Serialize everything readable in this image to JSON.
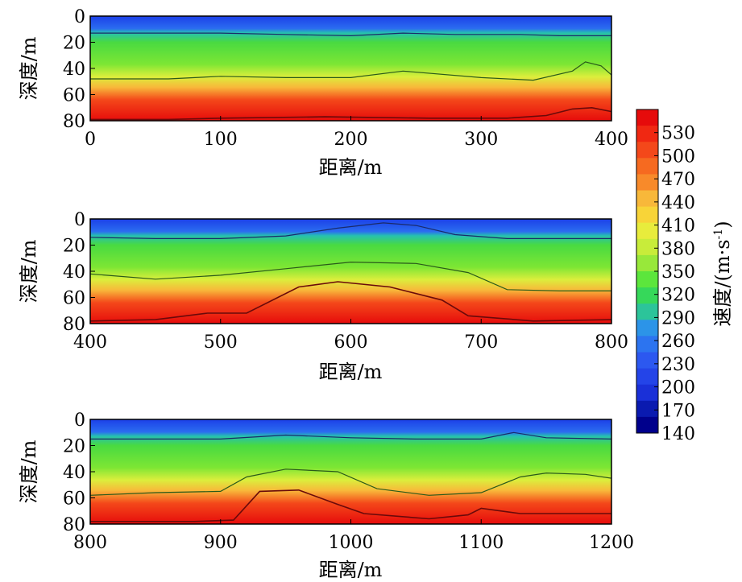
{
  "chart_data": [
    {
      "type": "heatmap",
      "xlabel": "距离/m",
      "ylabel": "深度/m",
      "xlim": [
        0,
        400
      ],
      "ylim": [
        0,
        80
      ],
      "xticks": [
        "0",
        "100",
        "200",
        "300",
        "400"
      ],
      "yticks": [
        "0",
        "20",
        "40",
        "60",
        "80"
      ],
      "contours": [
        {
          "name": "c1",
          "points": [
            [
              0,
              13
            ],
            [
              50,
              13
            ],
            [
              100,
              13
            ],
            [
              150,
              14
            ],
            [
              200,
              15
            ],
            [
              240,
              13
            ],
            [
              280,
              14
            ],
            [
              330,
              14
            ],
            [
              360,
              15
            ],
            [
              400,
              15
            ]
          ]
        },
        {
          "name": "c2",
          "points": [
            [
              0,
              48
            ],
            [
              60,
              48
            ],
            [
              100,
              46
            ],
            [
              150,
              47
            ],
            [
              200,
              47
            ],
            [
              240,
              42
            ],
            [
              300,
              47
            ],
            [
              340,
              49
            ],
            [
              370,
              42
            ],
            [
              380,
              35
            ],
            [
              392,
              38
            ],
            [
              400,
              45
            ]
          ]
        },
        {
          "name": "c3",
          "points": [
            [
              0,
              79
            ],
            [
              60,
              79
            ],
            [
              100,
              78
            ],
            [
              180,
              77
            ],
            [
              260,
              78
            ],
            [
              320,
              78
            ],
            [
              350,
              76
            ],
            [
              370,
              71
            ],
            [
              385,
              70
            ],
            [
              400,
              73
            ]
          ]
        }
      ],
      "bands": [
        {
          "points": [
            [
              0,
              0
            ],
            [
              400,
              0
            ],
            [
              400,
              13
            ],
            [
              0,
              13
            ]
          ]
        },
        {
          "points": [
            [
              0,
              13
            ],
            [
              400,
              13
            ],
            [
              400,
              45
            ],
            [
              0,
              45
            ]
          ]
        },
        {
          "points": [
            [
              0,
              45
            ],
            [
              400,
              45
            ],
            [
              400,
              65
            ],
            [
              0,
              65
            ]
          ]
        },
        {
          "points": [
            [
              0,
              65
            ],
            [
              400,
              65
            ],
            [
              400,
              80
            ],
            [
              0,
              80
            ]
          ]
        }
      ]
    },
    {
      "type": "heatmap",
      "xlabel": "距离/m",
      "ylabel": "深度/m",
      "xlim": [
        400,
        800
      ],
      "ylim": [
        0,
        80
      ],
      "xticks": [
        "400",
        "500",
        "600",
        "700",
        "800"
      ],
      "yticks": [
        "0",
        "20",
        "40",
        "60",
        "80"
      ],
      "contours": [
        {
          "name": "c1",
          "points": [
            [
              400,
              14
            ],
            [
              450,
              15
            ],
            [
              500,
              15
            ],
            [
              550,
              13
            ],
            [
              590,
              7
            ],
            [
              625,
              3
            ],
            [
              650,
              5
            ],
            [
              680,
              12
            ],
            [
              720,
              15
            ],
            [
              800,
              15
            ]
          ]
        },
        {
          "name": "c2",
          "points": [
            [
              400,
              42
            ],
            [
              450,
              46
            ],
            [
              500,
              43
            ],
            [
              550,
              38
            ],
            [
              600,
              33
            ],
            [
              650,
              34
            ],
            [
              690,
              41
            ],
            [
              720,
              54
            ],
            [
              760,
              55
            ],
            [
              800,
              55
            ]
          ]
        },
        {
          "name": "c3",
          "points": [
            [
              400,
              78
            ],
            [
              450,
              77
            ],
            [
              490,
              72
            ],
            [
              520,
              72
            ],
            [
              560,
              52
            ],
            [
              590,
              48
            ],
            [
              630,
              52
            ],
            [
              670,
              62
            ],
            [
              690,
              74
            ],
            [
              740,
              78
            ],
            [
              800,
              77
            ]
          ]
        }
      ]
    },
    {
      "type": "heatmap",
      "xlabel": "距离/m",
      "ylabel": "深度/m",
      "xlim": [
        800,
        1200
      ],
      "ylim": [
        0,
        80
      ],
      "xticks": [
        "800",
        "900",
        "1000",
        "1100",
        "1200"
      ],
      "yticks": [
        "0",
        "20",
        "40",
        "60",
        "80"
      ],
      "contours": [
        {
          "name": "c1",
          "points": [
            [
              800,
              15
            ],
            [
              850,
              15
            ],
            [
              900,
              15
            ],
            [
              950,
              12
            ],
            [
              1000,
              14
            ],
            [
              1050,
              15
            ],
            [
              1100,
              15
            ],
            [
              1125,
              10
            ],
            [
              1150,
              14
            ],
            [
              1200,
              15
            ]
          ]
        },
        {
          "name": "c2",
          "points": [
            [
              800,
              58
            ],
            [
              850,
              56
            ],
            [
              900,
              55
            ],
            [
              920,
              44
            ],
            [
              950,
              38
            ],
            [
              990,
              40
            ],
            [
              1020,
              53
            ],
            [
              1060,
              58
            ],
            [
              1100,
              56
            ],
            [
              1130,
              44
            ],
            [
              1150,
              41
            ],
            [
              1180,
              42
            ],
            [
              1200,
              45
            ]
          ]
        },
        {
          "name": "c3",
          "points": [
            [
              800,
              78
            ],
            [
              880,
              78
            ],
            [
              910,
              77
            ],
            [
              930,
              55
            ],
            [
              960,
              54
            ],
            [
              990,
              65
            ],
            [
              1010,
              72
            ],
            [
              1060,
              76
            ],
            [
              1090,
              73
            ],
            [
              1100,
              68
            ],
            [
              1130,
              72
            ],
            [
              1200,
              72
            ]
          ]
        }
      ]
    }
  ],
  "colorbar": {
    "label": "速度/(m·s",
    "label_sup": "-1",
    "label_close": ")",
    "ticks": [
      "530",
      "500",
      "470",
      "440",
      "410",
      "380",
      "350",
      "320",
      "290",
      "260",
      "230",
      "200",
      "170",
      "140"
    ],
    "range": [
      140,
      560
    ],
    "colors": [
      "#e60b0b",
      "#f02812",
      "#f4481a",
      "#f66a20",
      "#f88a2a",
      "#f8b83a",
      "#f8d438",
      "#e8ec3c",
      "#c8ec3a",
      "#98e83a",
      "#5ce63c",
      "#36d85a",
      "#2cc49a",
      "#2c94e8",
      "#2c74f0",
      "#2c58f0",
      "#2444e8",
      "#1a30d8",
      "#0a1ab0",
      "#00008c"
    ]
  }
}
